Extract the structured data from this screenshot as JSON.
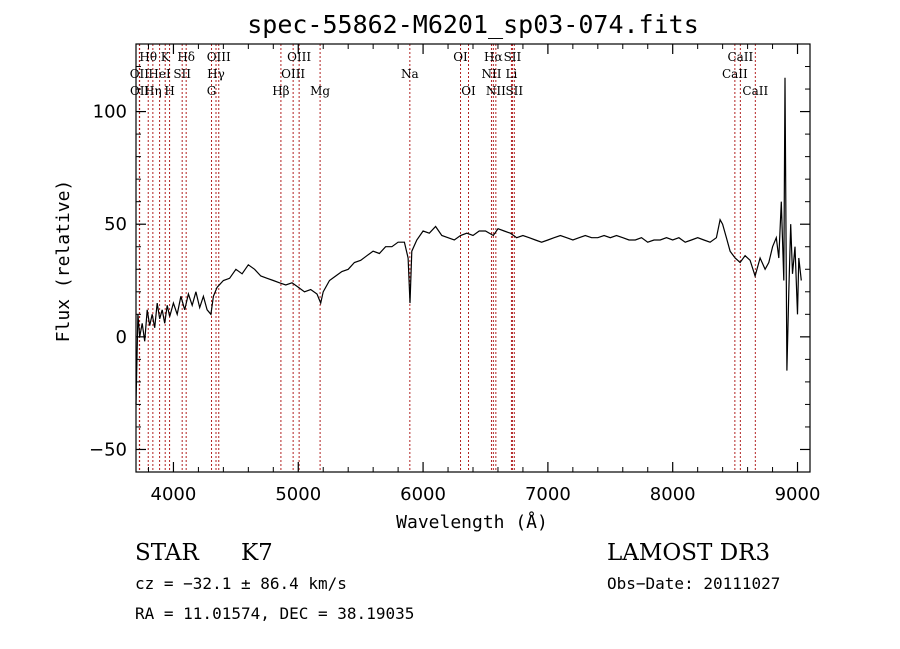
{
  "chart_data": {
    "type": "line",
    "title": "spec-55862-M6201_sp03-074.fits",
    "xlabel": "Wavelength (Å)",
    "ylabel": "Flux (relative)",
    "xlim": [
      3700,
      9100
    ],
    "ylim": [
      -60,
      130
    ],
    "xticks": [
      4000,
      5000,
      6000,
      7000,
      8000,
      9000
    ],
    "yticks": [
      -50,
      0,
      50,
      100
    ],
    "series": [
      {
        "name": "flux",
        "points": [
          [
            3700,
            -30
          ],
          [
            3715,
            10
          ],
          [
            3730,
            0
          ],
          [
            3750,
            6
          ],
          [
            3770,
            -2
          ],
          [
            3790,
            12
          ],
          [
            3810,
            5
          ],
          [
            3830,
            10
          ],
          [
            3850,
            4
          ],
          [
            3870,
            15
          ],
          [
            3890,
            8
          ],
          [
            3910,
            12
          ],
          [
            3930,
            6
          ],
          [
            3950,
            14
          ],
          [
            3970,
            9
          ],
          [
            4000,
            15
          ],
          [
            4030,
            10
          ],
          [
            4060,
            18
          ],
          [
            4090,
            12
          ],
          [
            4120,
            19
          ],
          [
            4150,
            14
          ],
          [
            4180,
            20
          ],
          [
            4210,
            13
          ],
          [
            4240,
            18
          ],
          [
            4270,
            12
          ],
          [
            4300,
            10
          ],
          [
            4320,
            18
          ],
          [
            4350,
            22
          ],
          [
            4400,
            25
          ],
          [
            4450,
            26
          ],
          [
            4500,
            30
          ],
          [
            4550,
            28
          ],
          [
            4600,
            32
          ],
          [
            4650,
            30
          ],
          [
            4700,
            27
          ],
          [
            4750,
            26
          ],
          [
            4800,
            25
          ],
          [
            4850,
            24
          ],
          [
            4900,
            23
          ],
          [
            4950,
            24
          ],
          [
            5000,
            22
          ],
          [
            5050,
            20
          ],
          [
            5100,
            21
          ],
          [
            5150,
            19
          ],
          [
            5180,
            15
          ],
          [
            5200,
            20
          ],
          [
            5250,
            25
          ],
          [
            5300,
            27
          ],
          [
            5350,
            29
          ],
          [
            5400,
            30
          ],
          [
            5450,
            33
          ],
          [
            5500,
            34
          ],
          [
            5550,
            36
          ],
          [
            5600,
            38
          ],
          [
            5650,
            37
          ],
          [
            5700,
            40
          ],
          [
            5750,
            40
          ],
          [
            5800,
            42
          ],
          [
            5850,
            42
          ],
          [
            5880,
            35
          ],
          [
            5895,
            15
          ],
          [
            5910,
            38
          ],
          [
            5950,
            43
          ],
          [
            6000,
            47
          ],
          [
            6050,
            46
          ],
          [
            6100,
            49
          ],
          [
            6150,
            45
          ],
          [
            6200,
            44
          ],
          [
            6250,
            43
          ],
          [
            6300,
            45
          ],
          [
            6350,
            46
          ],
          [
            6400,
            45
          ],
          [
            6450,
            47
          ],
          [
            6500,
            47
          ],
          [
            6563,
            45
          ],
          [
            6600,
            48
          ],
          [
            6650,
            47
          ],
          [
            6700,
            46
          ],
          [
            6750,
            44
          ],
          [
            6800,
            45
          ],
          [
            6850,
            44
          ],
          [
            6900,
            43
          ],
          [
            6950,
            42
          ],
          [
            7000,
            43
          ],
          [
            7050,
            44
          ],
          [
            7100,
            45
          ],
          [
            7150,
            44
          ],
          [
            7200,
            43
          ],
          [
            7250,
            44
          ],
          [
            7300,
            45
          ],
          [
            7350,
            44
          ],
          [
            7400,
            44
          ],
          [
            7450,
            45
          ],
          [
            7500,
            44
          ],
          [
            7550,
            45
          ],
          [
            7600,
            44
          ],
          [
            7650,
            43
          ],
          [
            7700,
            43
          ],
          [
            7750,
            44
          ],
          [
            7800,
            42
          ],
          [
            7850,
            43
          ],
          [
            7900,
            43
          ],
          [
            7950,
            44
          ],
          [
            8000,
            43
          ],
          [
            8050,
            44
          ],
          [
            8100,
            42
          ],
          [
            8150,
            43
          ],
          [
            8200,
            44
          ],
          [
            8250,
            43
          ],
          [
            8300,
            42
          ],
          [
            8350,
            44
          ],
          [
            8380,
            52
          ],
          [
            8400,
            50
          ],
          [
            8430,
            44
          ],
          [
            8460,
            38
          ],
          [
            8500,
            35
          ],
          [
            8540,
            33
          ],
          [
            8580,
            36
          ],
          [
            8620,
            34
          ],
          [
            8660,
            27
          ],
          [
            8700,
            35
          ],
          [
            8740,
            30
          ],
          [
            8770,
            33
          ],
          [
            8800,
            40
          ],
          [
            8830,
            44
          ],
          [
            8850,
            35
          ],
          [
            8870,
            60
          ],
          [
            8890,
            25
          ],
          [
            8900,
            115
          ],
          [
            8915,
            -15
          ],
          [
            8930,
            20
          ],
          [
            8945,
            50
          ],
          [
            8960,
            28
          ],
          [
            8980,
            40
          ],
          [
            9000,
            10
          ],
          [
            9010,
            35
          ],
          [
            9030,
            25
          ]
        ]
      }
    ],
    "annotations": [
      {
        "label": "Hθ",
        "wavelength": 3798,
        "row": 1
      },
      {
        "label": "OII",
        "wavelength": 3727,
        "row": 2
      },
      {
        "label": "OII",
        "wavelength": 3729,
        "row": 3
      },
      {
        "label": "K",
        "wavelength": 3934,
        "row": 1
      },
      {
        "label": "HeI",
        "wavelength": 3889,
        "row": 2
      },
      {
        "label": "Hη",
        "wavelength": 3835,
        "row": 3
      },
      {
        "label": "Hδ",
        "wavelength": 4102,
        "row": 1
      },
      {
        "label": "SII",
        "wavelength": 4070,
        "row": 2
      },
      {
        "label": "H",
        "wavelength": 3969,
        "row": 3
      },
      {
        "label": "OIII",
        "wavelength": 4363,
        "row": 1
      },
      {
        "label": "Hγ",
        "wavelength": 4341,
        "row": 2
      },
      {
        "label": "G",
        "wavelength": 4305,
        "row": 3
      },
      {
        "label": "OIII",
        "wavelength": 5007,
        "row": 1
      },
      {
        "label": "OIII",
        "wavelength": 4959,
        "row": 2
      },
      {
        "label": "Hβ",
        "wavelength": 4861,
        "row": 3
      },
      {
        "label": "Mg",
        "wavelength": 5175,
        "row": 3
      },
      {
        "label": "Na",
        "wavelength": 5894,
        "row": 2
      },
      {
        "label": "OI",
        "wavelength": 6300,
        "row": 1
      },
      {
        "label": "OI",
        "wavelength": 6364,
        "row": 3
      },
      {
        "label": "Hα",
        "wavelength": 6563,
        "row": 1
      },
      {
        "label": "NII",
        "wavelength": 6548,
        "row": 2
      },
      {
        "label": "NII",
        "wavelength": 6583,
        "row": 3
      },
      {
        "label": "SII",
        "wavelength": 6716,
        "row": 1
      },
      {
        "label": "Li",
        "wavelength": 6708,
        "row": 2
      },
      {
        "label": "SII",
        "wavelength": 6731,
        "row": 3
      },
      {
        "label": "CaII",
        "wavelength": 8542,
        "row": 1
      },
      {
        "label": "CaII",
        "wavelength": 8498,
        "row": 2
      },
      {
        "label": "CaII",
        "wavelength": 8662,
        "row": 3
      }
    ]
  },
  "info": {
    "class": "STAR",
    "subclass": "K7",
    "survey": "LAMOST DR3",
    "cz": "cz = −32.1 ± 86.4 km/s",
    "obs_date": "Obs−Date: 20111027",
    "radec": "RA =  11.01574, DEC =  38.19035"
  }
}
